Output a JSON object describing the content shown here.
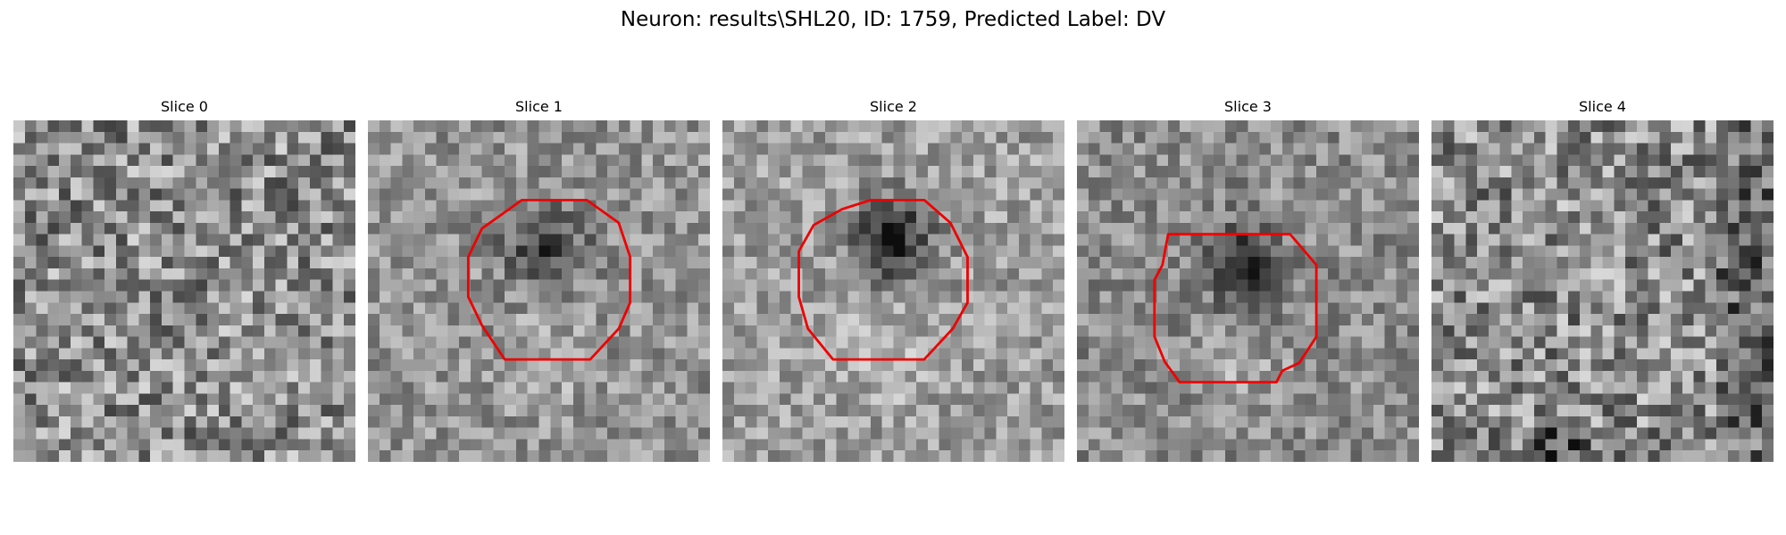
{
  "figure": {
    "title": "Neuron: results\\SHL20, ID: 1759, Predicted Label: DV"
  },
  "panels": [
    {
      "title": "Slice 0",
      "has_outline": false
    },
    {
      "title": "Slice 1",
      "has_outline": true
    },
    {
      "title": "Slice 2",
      "has_outline": true
    },
    {
      "title": "Slice 3",
      "has_outline": true
    },
    {
      "title": "Slice 4",
      "has_outline": false
    }
  ],
  "colors": {
    "outline": "#ee0000",
    "background": "#ffffff",
    "colormap": "gray"
  }
}
